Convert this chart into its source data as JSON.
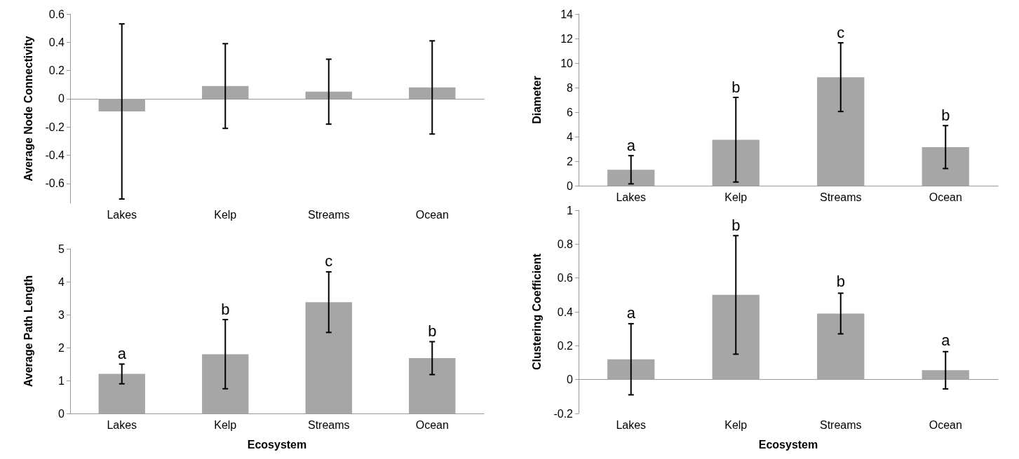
{
  "chart_data": [
    {
      "type": "bar",
      "ylabel": "Average Node Connectivity",
      "categories": [
        "Lakes",
        "Kelp",
        "Streams",
        "Ocean"
      ],
      "color": "#a6a6a6",
      "values": [
        -0.09,
        0.09,
        0.05,
        0.08
      ],
      "errors": [
        0.62,
        0.3,
        0.23,
        0.33
      ],
      "ylim": [
        -0.74,
        0.6
      ],
      "yticks": [
        -0.6,
        -0.4,
        -0.2,
        0,
        0.2,
        0.4,
        0.6
      ]
    },
    {
      "type": "bar",
      "ylabel": "Diameter",
      "categories": [
        "Lakes",
        "Kelp",
        "Streams",
        "Ocean"
      ],
      "color": "#a6a6a6",
      "values": [
        1.3,
        3.75,
        8.85,
        3.15
      ],
      "errors": [
        1.15,
        3.45,
        2.8,
        1.75
      ],
      "ylim": [
        0,
        14
      ],
      "yticks": [
        0,
        2,
        4,
        6,
        8,
        10,
        12,
        14
      ],
      "annotations": [
        {
          "text": "a",
          "x": "Lakes",
          "y": 2.45
        },
        {
          "text": "b",
          "x": "Kelp",
          "y": 7.2
        },
        {
          "text": "c",
          "x": "Streams",
          "y": 11.65
        },
        {
          "text": "b",
          "x": "Ocean",
          "y": 4.9
        }
      ]
    },
    {
      "type": "bar",
      "ylabel": "Average Path Length",
      "xlabel": "Ecosystem",
      "categories": [
        "Lakes",
        "Kelp",
        "Streams",
        "Ocean"
      ],
      "color": "#a6a6a6",
      "values": [
        1.2,
        1.8,
        3.38,
        1.68
      ],
      "errors": [
        0.3,
        1.05,
        0.92,
        0.5
      ],
      "ylim": [
        0,
        5
      ],
      "yticks": [
        0,
        1,
        2,
        3,
        4,
        5
      ],
      "annotations": [
        {
          "text": "a",
          "x": "Lakes",
          "y": 1.5
        },
        {
          "text": "b",
          "x": "Kelp",
          "y": 2.85
        },
        {
          "text": "c",
          "x": "Streams",
          "y": 4.3
        },
        {
          "text": "b",
          "x": "Ocean",
          "y": 2.18
        }
      ]
    },
    {
      "type": "bar",
      "ylabel": "Clustering Coefficient",
      "xlabel": "Ecosystem",
      "categories": [
        "Lakes",
        "Kelp",
        "Streams",
        "Ocean"
      ],
      "color": "#a6a6a6",
      "values": [
        0.12,
        0.5,
        0.39,
        0.055
      ],
      "errors": [
        0.21,
        0.35,
        0.12,
        0.11
      ],
      "ylim": [
        -0.2,
        1
      ],
      "yticks": [
        -0.2,
        0,
        0.2,
        0.4,
        0.6,
        0.8,
        1
      ],
      "annotations": [
        {
          "text": "a",
          "x": "Lakes",
          "y": 0.33
        },
        {
          "text": "b",
          "x": "Kelp",
          "y": 0.85
        },
        {
          "text": "b",
          "x": "Streams",
          "y": 0.52
        },
        {
          "text": "a",
          "x": "Ocean",
          "y": 0.17
        }
      ]
    }
  ]
}
